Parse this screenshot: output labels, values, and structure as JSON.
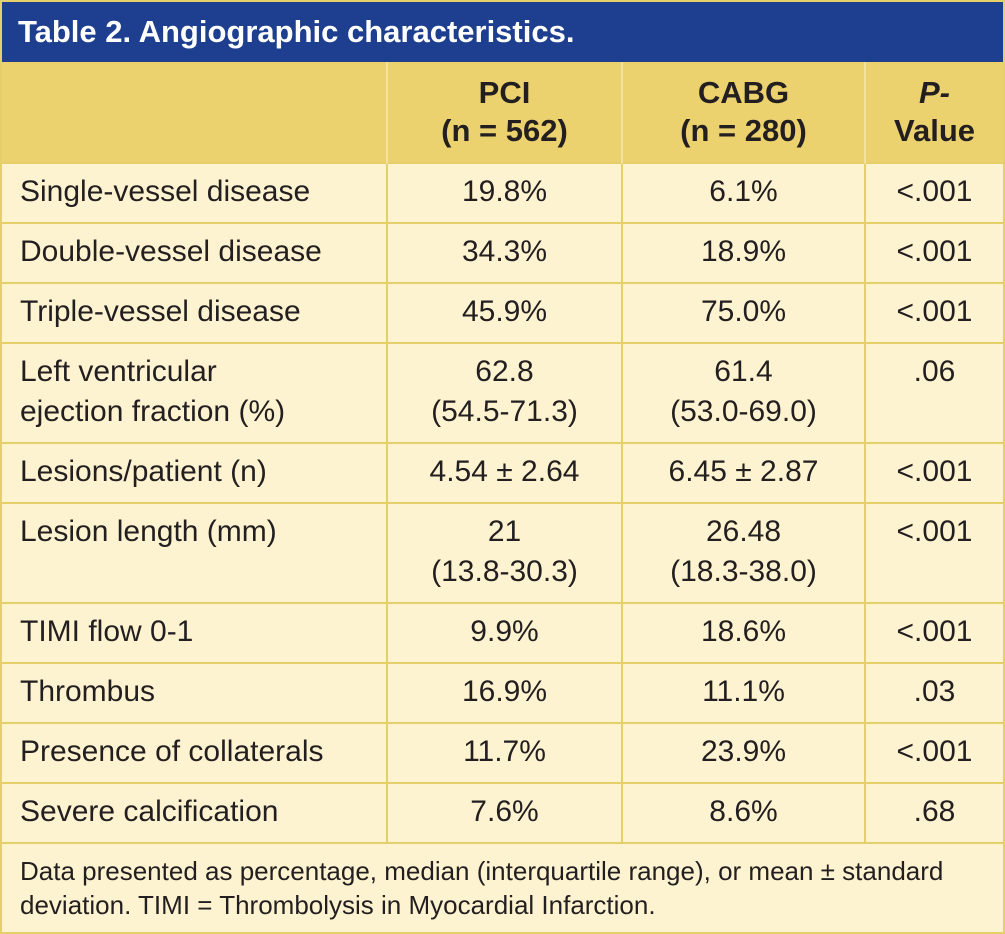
{
  "title": "Table 2. Angiographic characteristics.",
  "headers": {
    "pci": {
      "name": "PCI",
      "n": "(n = 562)"
    },
    "cabg": {
      "name": "CABG",
      "n": "(n = 280)"
    },
    "pvalue": {
      "line1": "P-",
      "line2": "Value"
    }
  },
  "rows": [
    {
      "label": [
        "Single-vessel disease"
      ],
      "pci": [
        "19.8%"
      ],
      "cabg": [
        "6.1%"
      ],
      "p": "<.001"
    },
    {
      "label": [
        "Double-vessel disease"
      ],
      "pci": [
        "34.3%"
      ],
      "cabg": [
        "18.9%"
      ],
      "p": "<.001"
    },
    {
      "label": [
        "Triple-vessel disease"
      ],
      "pci": [
        "45.9%"
      ],
      "cabg": [
        "75.0%"
      ],
      "p": "<.001"
    },
    {
      "label": [
        "Left ventricular",
        "ejection fraction (%)"
      ],
      "pci": [
        "62.8",
        "(54.5-71.3)"
      ],
      "cabg": [
        "61.4",
        "(53.0-69.0)"
      ],
      "p": ".06"
    },
    {
      "label": [
        "Lesions/patient (n)"
      ],
      "pci": [
        "4.54 ± 2.64"
      ],
      "cabg": [
        "6.45 ± 2.87"
      ],
      "p": "<.001"
    },
    {
      "label": [
        "Lesion length (mm)"
      ],
      "pci": [
        "21",
        "(13.8-30.3)"
      ],
      "cabg": [
        "26.48",
        "(18.3-38.0)"
      ],
      "p": "<.001"
    },
    {
      "label": [
        "TIMI flow 0-1"
      ],
      "pci": [
        "9.9%"
      ],
      "cabg": [
        "18.6%"
      ],
      "p": "<.001"
    },
    {
      "label": [
        "Thrombus"
      ],
      "pci": [
        "16.9%"
      ],
      "cabg": [
        "11.1%"
      ],
      "p": ".03"
    },
    {
      "label": [
        "Presence of collaterals"
      ],
      "pci": [
        "11.7%"
      ],
      "cabg": [
        "23.9%"
      ],
      "p": "<.001"
    },
    {
      "label": [
        "Severe calcification"
      ],
      "pci": [
        "7.6%"
      ],
      "cabg": [
        "8.6%"
      ],
      "p": ".68"
    }
  ],
  "footnote": "Data presented as percentage, median (interquartile range), or mean ± standard deviation. TIMI = Thrombolysis in Myocardial Infarction."
}
